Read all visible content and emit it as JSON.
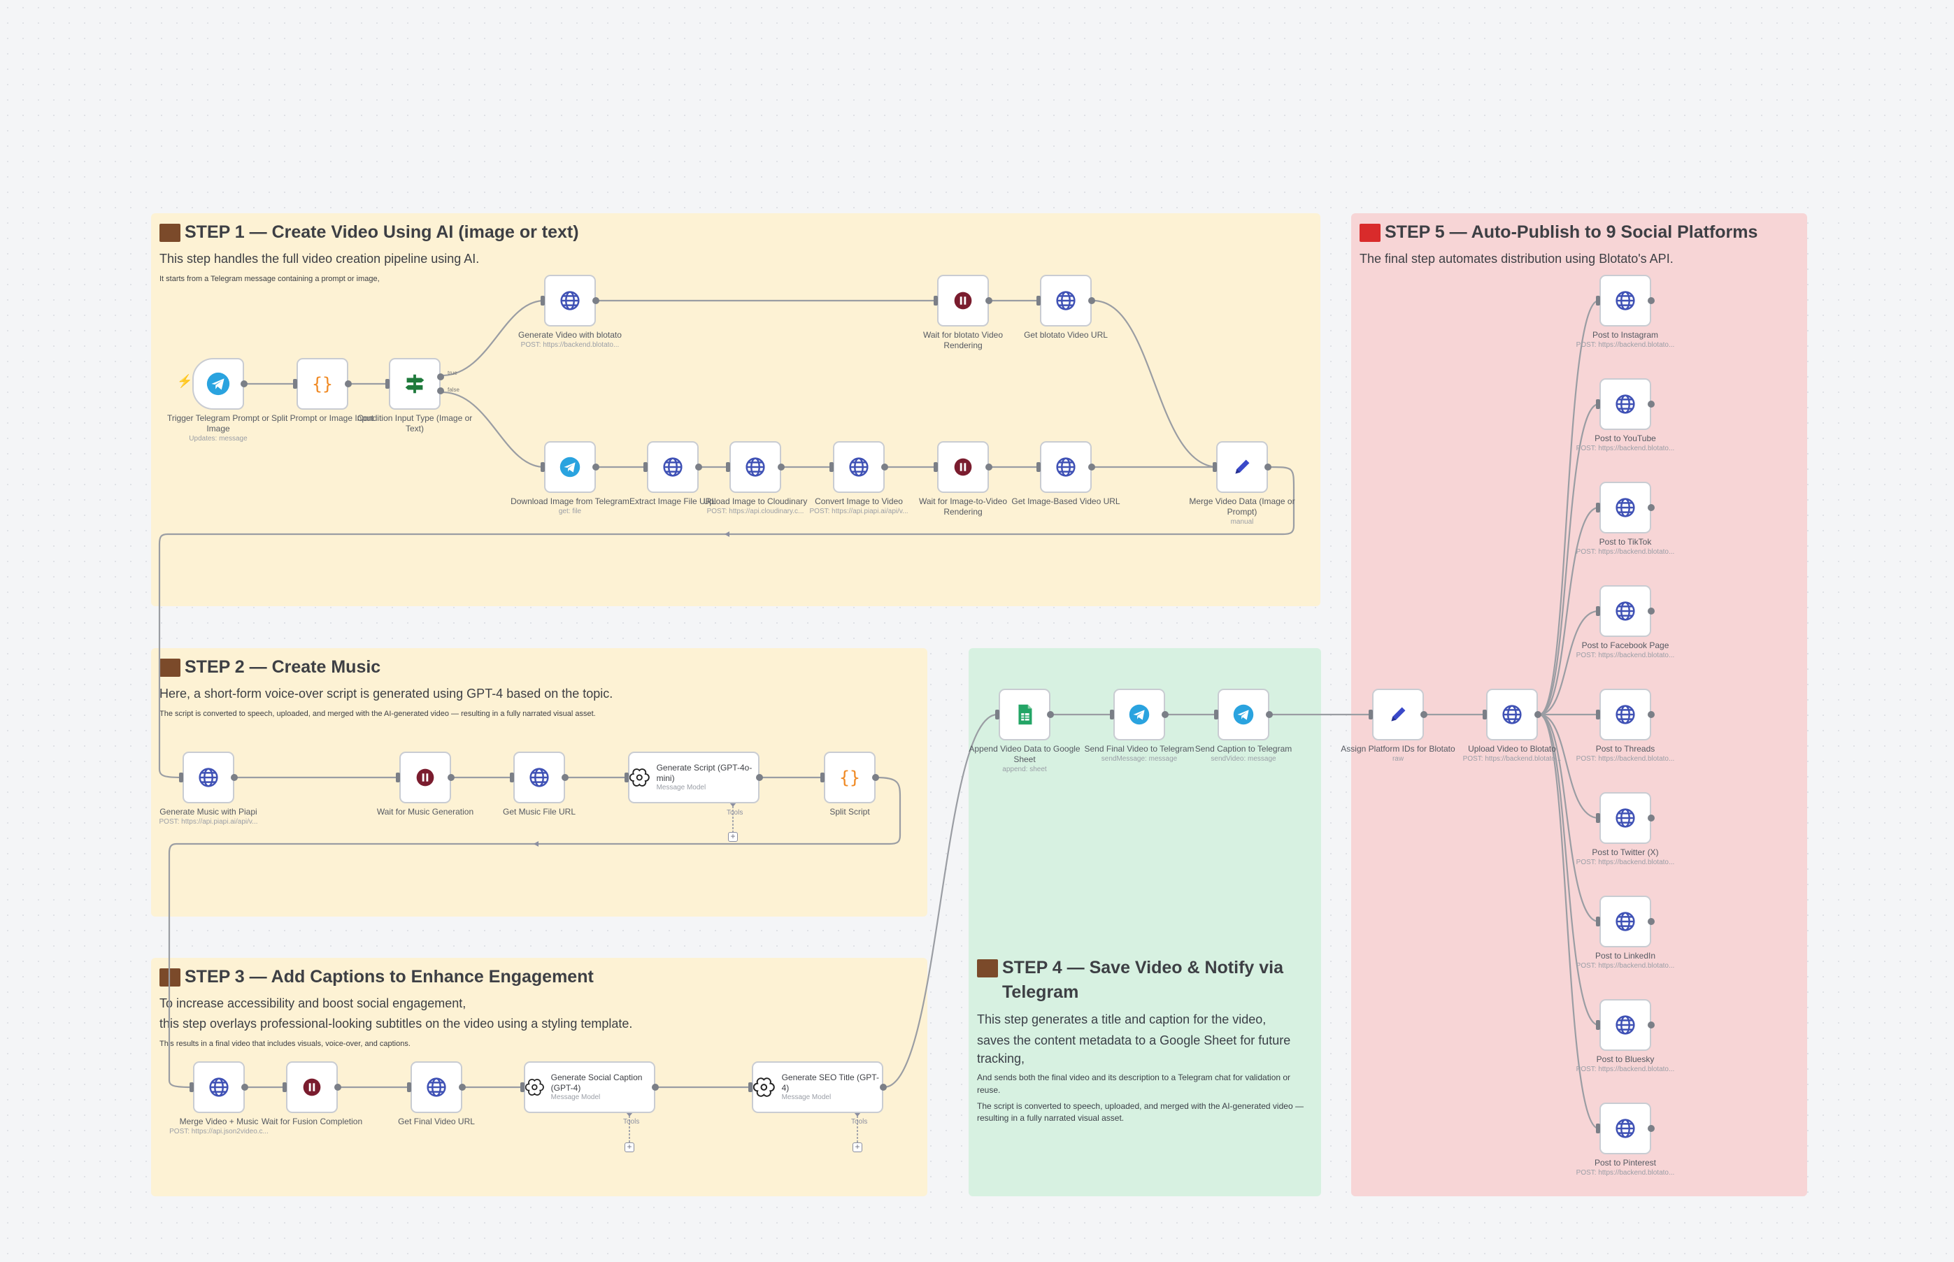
{
  "stickies": {
    "step1": {
      "title": "STEP 1 — Create Video Using AI (image or text)",
      "sub": "This step handles the full video creation pipeline using AI.",
      "small": "It starts from a Telegram message containing a prompt or image,"
    },
    "step2": {
      "title": "STEP 2 — Create Music",
      "sub": "Here, a short-form voice-over script is generated using GPT-4 based on the topic.",
      "small": "The script is converted to speech, uploaded, and merged with the AI-generated video — resulting in a fully narrated visual asset."
    },
    "step3": {
      "title": "STEP 3 — Add Captions to Enhance Engagement",
      "sub1": "To increase accessibility and boost social engagement,",
      "sub2": "this step overlays professional-looking subtitles on the video using a styling template.",
      "small": "This results in a final video that includes visuals, voice-over, and captions."
    },
    "step4": {
      "title": "STEP 4 — Save Video & Notify via Telegram",
      "body1": "This step generates a title and caption for the video,",
      "body2": "saves the content metadata to a Google Sheet for future tracking,",
      "small1": "And sends both the final video and its description to a Telegram chat for validation or reuse.",
      "small2": "The script is converted to speech, uploaded, and merged with the AI-generated video — resulting in a fully narrated visual asset."
    },
    "step5": {
      "title": "STEP 5 — Auto-Publish to 9 Social Platforms",
      "sub": "The final step automates distribution using Blotato's API."
    }
  },
  "nodes": {
    "trigger": {
      "label": "Trigger Telegram Prompt or Image",
      "sub": "Updates: message",
      "icon": "telegram-icon"
    },
    "split_prompt": {
      "label": "Split Prompt or Image Input",
      "icon": "code-braces-icon"
    },
    "condition": {
      "label": "Condition Input Type (Image or Text)",
      "icon": "switch-icon",
      "out_true": "true",
      "out_false": "false"
    },
    "gen_video_blotato": {
      "label": "Generate Video with blotato",
      "sub": "POST: https://backend.blotato...",
      "icon": "globe-icon"
    },
    "wait_blotato": {
      "label": "Wait for blotato Video Rendering",
      "icon": "pause-icon"
    },
    "get_blotato_url": {
      "label": "Get blotato Video URL",
      "icon": "globe-icon"
    },
    "download_image": {
      "label": "Download Image from Telegram",
      "sub": "get: file",
      "icon": "telegram-icon"
    },
    "extract_image": {
      "label": "Extract Image File URL",
      "icon": "globe-icon"
    },
    "upload_cloudinary": {
      "label": "Upload Image to Cloudinary",
      "sub": "POST: https://api.cloudinary.c...",
      "icon": "globe-icon"
    },
    "convert_image": {
      "label": "Convert Image to Video",
      "sub": "POST: https://api.piapi.ai/api/v...",
      "icon": "globe-icon"
    },
    "wait_i2v": {
      "label": "Wait for Image-to-Video Rendering",
      "icon": "pause-icon"
    },
    "get_image_video": {
      "label": "Get Image-Based Video URL",
      "icon": "globe-icon"
    },
    "merge_video_data": {
      "label": "Merge Video Data (Image or Prompt)",
      "sub": "manual",
      "icon": "pencil-icon"
    },
    "gen_music": {
      "label": "Generate Music with Piapi",
      "sub": "POST: https://api.piapi.ai/api/v...",
      "icon": "globe-icon"
    },
    "wait_music": {
      "label": "Wait for Music Generation",
      "icon": "pause-icon"
    },
    "get_music": {
      "label": "Get Music File URL",
      "icon": "globe-icon"
    },
    "gen_script": {
      "label": "Generate Script (GPT-4o-mini)",
      "sub": "Message Model",
      "icon": "openai-icon",
      "tools": "Tools"
    },
    "split_script": {
      "label": "Split Script",
      "icon": "code-braces-icon"
    },
    "merge_music": {
      "label": "Merge Video + Music",
      "sub": "POST: https://api.json2video.c...",
      "icon": "globe-icon"
    },
    "wait_fusion": {
      "label": "Wait for Fusion Completion",
      "icon": "pause-icon"
    },
    "get_final": {
      "label": "Get Final Video URL",
      "icon": "globe-icon"
    },
    "gen_caption": {
      "label": "Generate Social Caption (GPT-4)",
      "sub": "Message Model",
      "icon": "openai-icon",
      "tools": "Tools"
    },
    "gen_seo": {
      "label": "Generate SEO Title (GPT-4)",
      "sub": "Message Model",
      "icon": "openai-icon",
      "tools": "Tools"
    },
    "append_sheet": {
      "label": "Append Video Data to Google Sheet",
      "sub": "append: sheet",
      "icon": "google-sheets-icon"
    },
    "send_video_tg": {
      "label": "Send Final Video to Telegram",
      "sub": "sendMessage: message",
      "icon": "telegram-icon"
    },
    "send_caption_tg": {
      "label": "Send Caption to Telegram",
      "sub": "sendVideo: message",
      "icon": "telegram-icon"
    },
    "assign_platform": {
      "label": "Assign Platform IDs for Blotato",
      "sub": "raw",
      "icon": "pencil-icon"
    },
    "upload_blotato": {
      "label": "Upload Video to Blotato",
      "sub": "POST: https://backend.blotato...",
      "icon": "globe-icon"
    }
  },
  "platforms": [
    {
      "label": "Post to Instagram",
      "sub": "POST: https://backend.blotato..."
    },
    {
      "label": "Post to YouTube",
      "sub": "POST: https://backend.blotato..."
    },
    {
      "label": "Post to TikTok",
      "sub": "POST: https://backend.blotato..."
    },
    {
      "label": "Post to Facebook Page",
      "sub": "POST: https://backend.blotato..."
    },
    {
      "label": "Post to Threads",
      "sub": "POST: https://backend.blotato..."
    },
    {
      "label": "Post to Twitter (X)",
      "sub": "POST: https://backend.blotato..."
    },
    {
      "label": "Post to LinkedIn",
      "sub": "POST: https://backend.blotato..."
    },
    {
      "label": "Post to Bluesky",
      "sub": "POST: https://backend.blotato..."
    },
    {
      "label": "Post to Pinterest",
      "sub": "POST: https://backend.blotato..."
    }
  ],
  "colors": {
    "sticky_yellow": "#fdf2d4",
    "sticky_green": "#d7f1e1",
    "sticky_pink": "#f7d5d6",
    "globe": "#3f51b5",
    "pause": "#7a1c2e",
    "telegram": "#2aa3df",
    "code": "#f08a24",
    "switch": "#1f7a3c",
    "sheets": "#23a566",
    "pencil": "#3a49c9"
  }
}
